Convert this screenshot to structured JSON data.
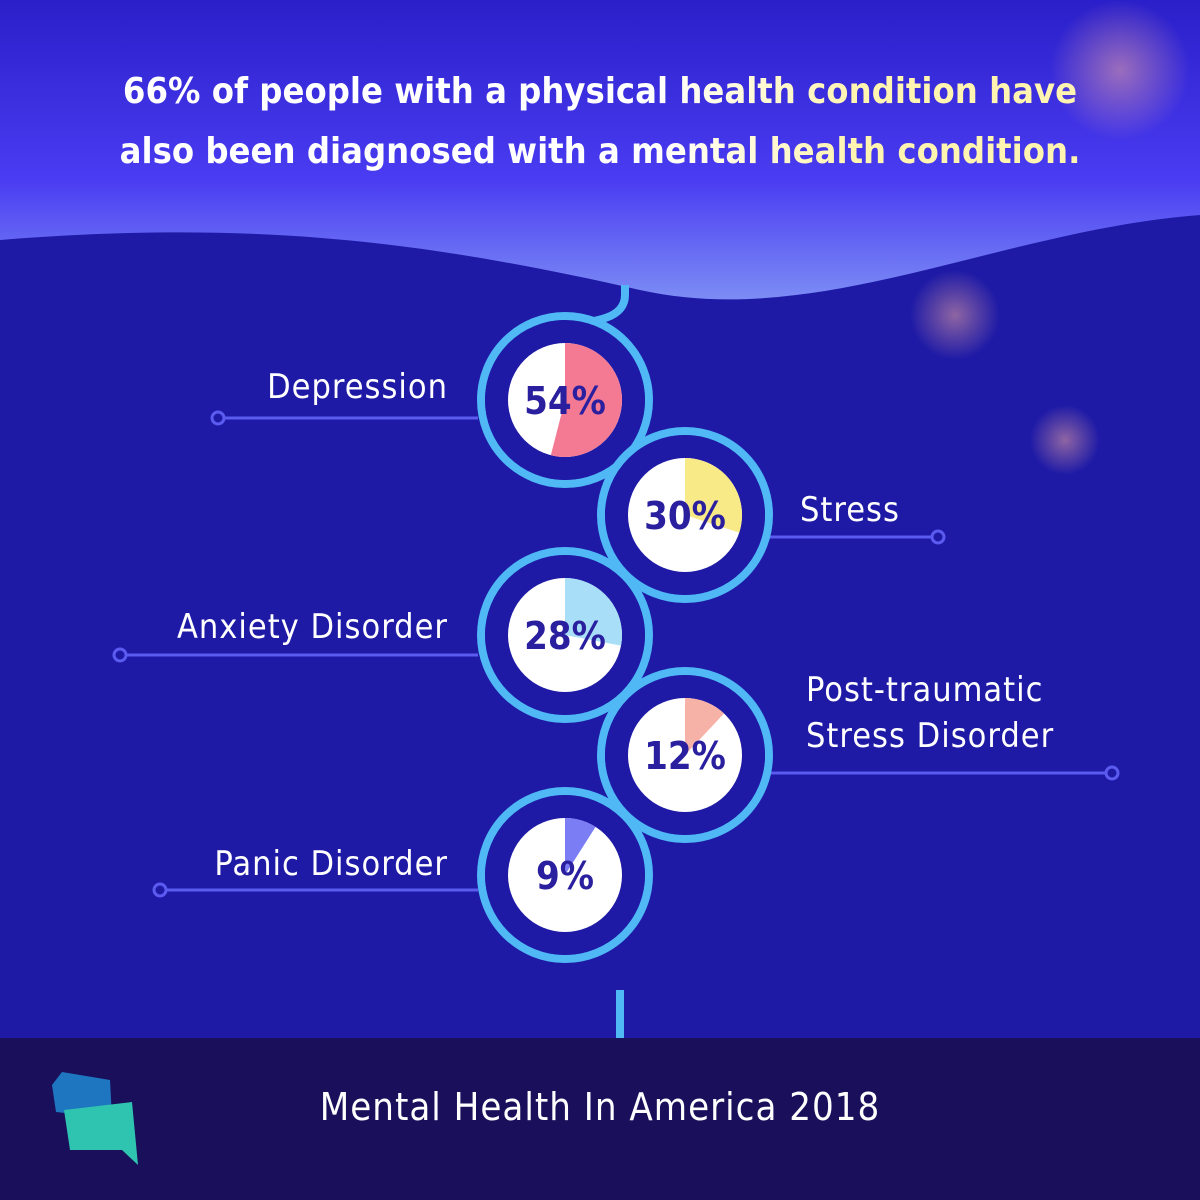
{
  "chart_data": {
    "type": "pie",
    "title": "66% of people with a physical health condition have also been diagnosed with a mental health condition.",
    "categories": [
      "Depression",
      "Stress",
      "Anxiety Disorder",
      "Post-traumatic Stress Disorder",
      "Panic Disorder"
    ],
    "values": [
      54,
      30,
      28,
      12,
      9
    ],
    "value_labels": [
      "54%",
      "30%",
      "28%",
      "12%",
      "9%"
    ],
    "colors": [
      "#f47a94",
      "#f8ea87",
      "#a8def7",
      "#f7b2a8",
      "#7b7df5"
    ],
    "source": "Mental Health In America 2018"
  }
}
